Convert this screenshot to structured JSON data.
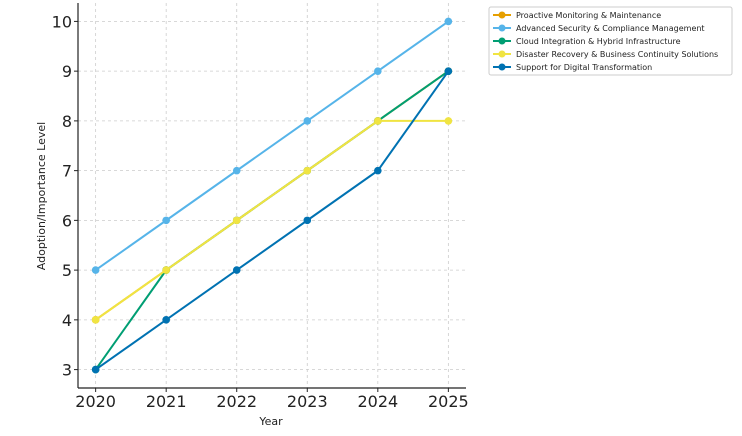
{
  "chart_data": {
    "type": "line",
    "title": "",
    "xlabel": "Year",
    "ylabel": "Adoption/Importance Level",
    "x": [
      "2020",
      "2021",
      "2022",
      "2023",
      "2024",
      "2025"
    ],
    "xlim": [
      2019.75,
      2025.25
    ],
    "ylim": [
      2.63,
      10.37
    ],
    "yticks": [
      "3",
      "4",
      "5",
      "6",
      "7",
      "8",
      "9",
      "10"
    ],
    "grid": true,
    "legend_position": "top-right, outside plot",
    "series": [
      {
        "name": "Proactive Monitoring & Maintenance",
        "color": "#E69F00",
        "values": [
          4,
          5,
          6,
          7,
          8,
          9
        ]
      },
      {
        "name": "Advanced Security & Compliance Management",
        "color": "#56B4E9",
        "values": [
          5,
          6,
          7,
          8,
          9,
          10
        ]
      },
      {
        "name": "Cloud Integration & Hybrid Infrastructure",
        "color": "#009E73",
        "values": [
          3,
          5,
          6,
          7,
          8,
          9
        ]
      },
      {
        "name": "Disaster Recovery & Business Continuity Solutions",
        "color": "#F0E442",
        "values": [
          4,
          5,
          6,
          7,
          8,
          8
        ]
      },
      {
        "name": "Support for Digital Transformation",
        "color": "#0072B2",
        "values": [
          3,
          4,
          5,
          6,
          7,
          9
        ]
      }
    ]
  }
}
